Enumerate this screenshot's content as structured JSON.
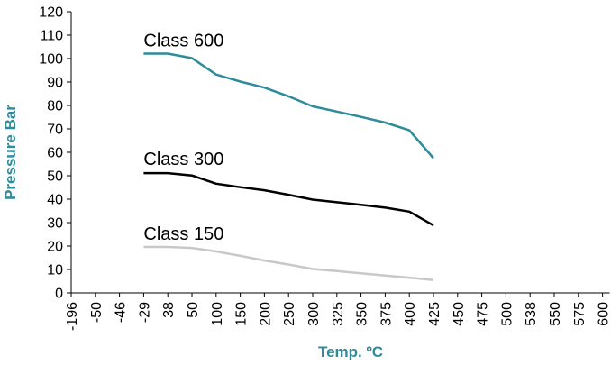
{
  "chart_data": {
    "type": "line",
    "title": "",
    "xlabel": "Temp. ºC",
    "ylabel": "Pressure Bar",
    "ylim": [
      0,
      120
    ],
    "yticks": [
      "0",
      "10",
      "20",
      "30",
      "40",
      "50",
      "60",
      "70",
      "80",
      "90",
      "100",
      "110",
      "120"
    ],
    "categories": [
      "-196",
      "-50",
      "-46",
      "-29",
      "38",
      "50",
      "100",
      "150",
      "200",
      "250",
      "300",
      "325",
      "350",
      "375",
      "400",
      "425",
      "450",
      "475",
      "500",
      "538",
      "550",
      "575",
      "600"
    ],
    "grid": false,
    "legend": "inline labels",
    "series": [
      {
        "name": "Class 600",
        "color": "#2e8b9a",
        "values": [
          null,
          null,
          null,
          102.1,
          102.1,
          100.2,
          93.2,
          90.2,
          87.6,
          83.9,
          79.6,
          77.4,
          75.1,
          72.7,
          69.4,
          57.5,
          null,
          null,
          null,
          null,
          null,
          null,
          null
        ]
      },
      {
        "name": "Class 300",
        "color": "#000000",
        "values": [
          null,
          null,
          null,
          51.1,
          51.1,
          50.1,
          46.6,
          45.1,
          43.8,
          41.9,
          39.8,
          38.7,
          37.6,
          36.4,
          34.7,
          28.8,
          null,
          null,
          null,
          null,
          null,
          null,
          null
        ]
      },
      {
        "name": "Class 150",
        "color": "#c8c8c8",
        "values": [
          null,
          null,
          null,
          19.6,
          19.6,
          19.2,
          17.7,
          15.8,
          13.8,
          12.1,
          10.2,
          9.3,
          8.4,
          7.4,
          6.5,
          5.5,
          null,
          null,
          null,
          null,
          null,
          null,
          null
        ]
      }
    ],
    "axis_color": "#000000",
    "ylabel_color": "#2e8b9a"
  }
}
